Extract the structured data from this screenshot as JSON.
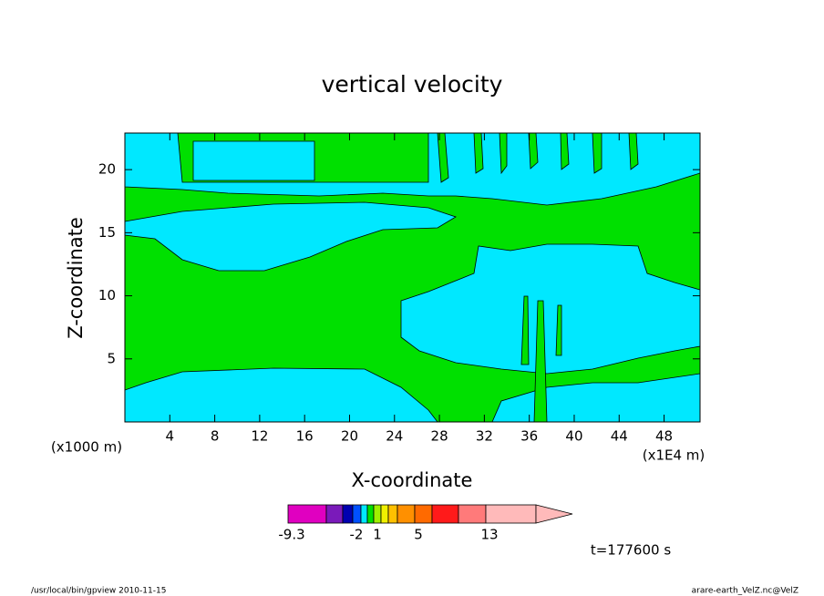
{
  "chart_data": {
    "type": "contour",
    "title": "vertical velocity",
    "x_label": "X-coordinate",
    "y_label": "Z-coordinate",
    "x_unit": "(x1E4 m)",
    "y_unit": "(x1000 m)",
    "xlim": [
      0,
      51.2
    ],
    "ylim": [
      0,
      22.9
    ],
    "xticks": [
      4,
      8,
      12,
      16,
      20,
      24,
      28,
      32,
      36,
      40,
      44,
      48
    ],
    "yticks": [
      5,
      10,
      15,
      20
    ],
    "colorbar": {
      "levels": [
        -9.3,
        -6,
        -4,
        -2,
        -1,
        0,
        1,
        2,
        3,
        4,
        5,
        7,
        10,
        13,
        20
      ],
      "colors": [
        "#e000c0",
        "#7a1aba",
        "#0000b0",
        "#0050ff",
        "#00e8ff",
        "#00e000",
        "#a0f000",
        "#f0f000",
        "#ffc000",
        "#ff9000",
        "#ff6a00",
        "#ff1a1a",
        "#ff7a7a",
        "#ffbaba"
      ],
      "ticks": [
        -9.3,
        -2,
        1,
        5,
        13
      ]
    },
    "time_label": "t=177600 s",
    "footer_left": "/usr/local/bin/gpview  2010-11-15",
    "footer_right": "arare-earth_VelZ.nc@VelZ"
  }
}
